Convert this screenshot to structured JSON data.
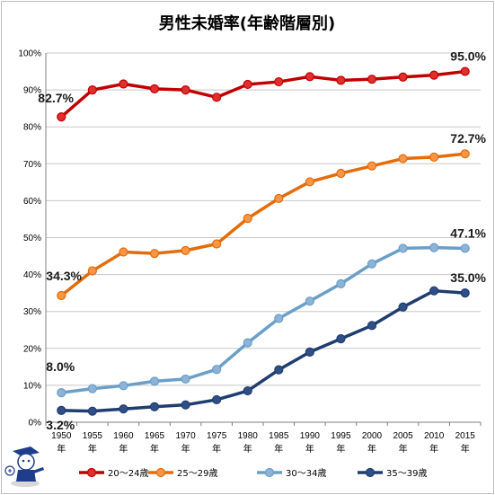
{
  "chart_data": {
    "type": "line",
    "title": "男性未婚率(年齢階層別)",
    "categories": [
      "1950年",
      "1955年",
      "1960年",
      "1965年",
      "1970年",
      "1975年",
      "1980年",
      "1985年",
      "1990年",
      "1995年",
      "2000年",
      "2005年",
      "2010年",
      "2015年"
    ],
    "ylim": [
      0,
      100
    ],
    "yticks": [
      "0%",
      "10%",
      "20%",
      "30%",
      "40%",
      "50%",
      "60%",
      "70%",
      "80%",
      "90%",
      "100%"
    ],
    "grid": true,
    "legend_position": "bottom",
    "series": [
      {
        "name": "20～24歳",
        "color": "#c00000",
        "marker": "#e0302e",
        "values": [
          82.7,
          90.0,
          91.6,
          90.3,
          90.0,
          88.0,
          91.5,
          92.2,
          93.6,
          92.6,
          92.9,
          93.5,
          94.0,
          95.0
        ],
        "labels": {
          "first": "82.7%",
          "last": "95.0%"
        }
      },
      {
        "name": "25～29歳",
        "color": "#e46c0a",
        "marker": "#f79646",
        "values": [
          34.3,
          41.0,
          46.1,
          45.7,
          46.5,
          48.3,
          55.2,
          60.6,
          65.1,
          67.4,
          69.4,
          71.4,
          71.8,
          72.7
        ],
        "labels": {
          "first": "34.3%",
          "last": "72.7%"
        }
      },
      {
        "name": "30～34歳",
        "color": "#6a9fc8",
        "marker": "#8db3d6",
        "values": [
          8.0,
          9.1,
          9.9,
          11.1,
          11.7,
          14.3,
          21.5,
          28.1,
          32.8,
          37.5,
          42.9,
          47.1,
          47.3,
          47.1
        ],
        "labels": {
          "first": "8.0%",
          "last": "47.1%"
        }
      },
      {
        "name": "35～39歳",
        "color": "#1f3d6e",
        "marker": "#2f4f86",
        "values": [
          3.2,
          3.0,
          3.6,
          4.2,
          4.7,
          6.1,
          8.5,
          14.2,
          19.0,
          22.6,
          26.2,
          31.2,
          35.6,
          35.0
        ],
        "labels": {
          "first": "3.2%",
          "last": "35.0%"
        }
      }
    ]
  }
}
